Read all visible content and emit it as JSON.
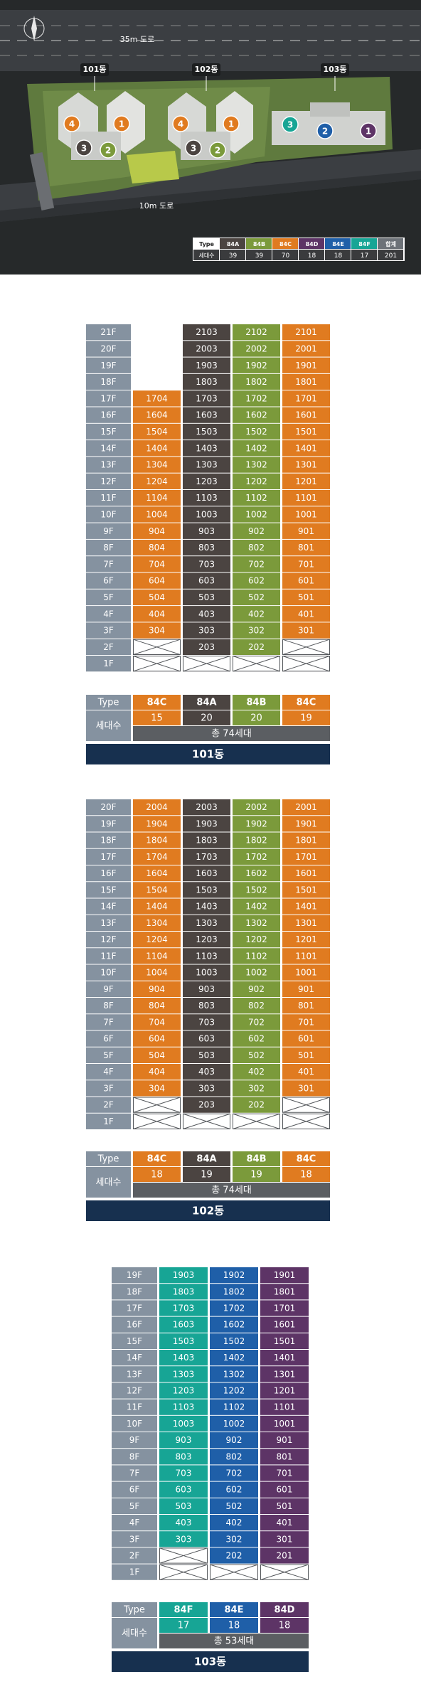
{
  "site_plan": {
    "roads": [
      "35m 도로",
      "10m 도로"
    ],
    "buildings": [
      {
        "label": "101동",
        "markers": [
          "4",
          "1",
          "3",
          "2"
        ]
      },
      {
        "label": "102동",
        "markers": [
          "4",
          "1",
          "3",
          "2"
        ]
      },
      {
        "label": "103동",
        "markers": [
          "3",
          "2",
          "1"
        ]
      }
    ],
    "type_table": {
      "header": [
        "Type",
        "84A",
        "84B",
        "84C",
        "84D",
        "84E",
        "84F",
        "합계"
      ],
      "counts_label": "세대수",
      "counts": [
        "39",
        "39",
        "70",
        "18",
        "18",
        "17",
        "201"
      ]
    }
  },
  "buildings": [
    {
      "floors": [
        "21F",
        "20F",
        "19F",
        "18F",
        "17F",
        "16F",
        "15F",
        "14F",
        "13F",
        "12F",
        "11F",
        "10F",
        "9F",
        "8F",
        "7F",
        "6F",
        "5F",
        "4F",
        "3F",
        "2F",
        "1F"
      ],
      "columns": [
        {
          "color": "#e07b20",
          "units": [
            null,
            null,
            null,
            null,
            "1704",
            "1604",
            "1504",
            "1404",
            "1304",
            "1204",
            "1104",
            "1004",
            "904",
            "804",
            "704",
            "604",
            "504",
            "404",
            "304",
            null,
            null
          ]
        },
        {
          "color": "#4b4441",
          "units": [
            "2103",
            "2003",
            "1903",
            "1803",
            "1703",
            "1603",
            "1503",
            "1403",
            "1303",
            "1203",
            "1103",
            "1003",
            "903",
            "803",
            "703",
            "603",
            "503",
            "403",
            "303",
            "203",
            null
          ]
        },
        {
          "color": "#7b9a3b",
          "units": [
            "2102",
            "2002",
            "1902",
            "1802",
            "1702",
            "1602",
            "1502",
            "1402",
            "1302",
            "1202",
            "1102",
            "1002",
            "902",
            "802",
            "702",
            "602",
            "502",
            "402",
            "302",
            "202",
            null
          ]
        },
        {
          "color": "#e07b20",
          "units": [
            "2101",
            "2001",
            "1901",
            "1801",
            "1701",
            "1601",
            "1501",
            "1401",
            "1301",
            "1201",
            "1101",
            "1001",
            "901",
            "801",
            "701",
            "601",
            "501",
            "401",
            "301",
            null,
            null
          ]
        }
      ],
      "summary": {
        "type_label": "Type",
        "types": [
          "84C",
          "84A",
          "84B",
          "84C"
        ],
        "count_label": "세대수",
        "counts": [
          "15",
          "20",
          "20",
          "19"
        ],
        "total": "총 74세대",
        "name": "101동"
      }
    },
    {
      "floors": [
        "20F",
        "19F",
        "18F",
        "17F",
        "16F",
        "15F",
        "14F",
        "13F",
        "12F",
        "11F",
        "10F",
        "9F",
        "8F",
        "7F",
        "6F",
        "5F",
        "4F",
        "3F",
        "2F",
        "1F"
      ],
      "columns": [
        {
          "color": "#e07b20",
          "units": [
            "2004",
            "1904",
            "1804",
            "1704",
            "1604",
            "1504",
            "1404",
            "1304",
            "1204",
            "1104",
            "1004",
            "904",
            "804",
            "704",
            "604",
            "504",
            "404",
            "304",
            null,
            null
          ]
        },
        {
          "color": "#4b4441",
          "units": [
            "2003",
            "1903",
            "1803",
            "1703",
            "1603",
            "1503",
            "1403",
            "1303",
            "1203",
            "1103",
            "1003",
            "903",
            "803",
            "703",
            "603",
            "503",
            "403",
            "303",
            "203",
            null
          ]
        },
        {
          "color": "#7b9a3b",
          "units": [
            "2002",
            "1902",
            "1802",
            "1702",
            "1602",
            "1502",
            "1402",
            "1302",
            "1202",
            "1102",
            "1002",
            "902",
            "802",
            "702",
            "602",
            "502",
            "402",
            "302",
            "202",
            null
          ]
        },
        {
          "color": "#e07b20",
          "units": [
            "2001",
            "1901",
            "1801",
            "1701",
            "1601",
            "1501",
            "1401",
            "1301",
            "1201",
            "1101",
            "1001",
            "901",
            "801",
            "701",
            "601",
            "501",
            "401",
            "301",
            null,
            null
          ]
        }
      ],
      "summary": {
        "type_label": "Type",
        "types": [
          "84C",
          "84A",
          "84B",
          "84C"
        ],
        "count_label": "세대수",
        "counts": [
          "18",
          "19",
          "19",
          "18"
        ],
        "total": "총 74세대",
        "name": "102동"
      }
    },
    {
      "floors": [
        "19F",
        "18F",
        "17F",
        "16F",
        "15F",
        "14F",
        "13F",
        "12F",
        "11F",
        "10F",
        "9F",
        "8F",
        "7F",
        "6F",
        "5F",
        "4F",
        "3F",
        "2F",
        "1F"
      ],
      "columns": [
        {
          "color": "#17a595",
          "units": [
            "1903",
            "1803",
            "1703",
            "1603",
            "1503",
            "1403",
            "1303",
            "1203",
            "1103",
            "1003",
            "903",
            "803",
            "703",
            "603",
            "503",
            "403",
            "303",
            null,
            null
          ]
        },
        {
          "color": "#1f5fa8",
          "units": [
            "1902",
            "1802",
            "1702",
            "1602",
            "1502",
            "1402",
            "1302",
            "1202",
            "1102",
            "1002",
            "902",
            "802",
            "702",
            "602",
            "502",
            "402",
            "302",
            "202",
            null
          ]
        },
        {
          "color": "#5d3466",
          "units": [
            "1901",
            "1801",
            "1701",
            "1601",
            "1501",
            "1401",
            "1301",
            "1201",
            "1101",
            "1001",
            "901",
            "801",
            "701",
            "601",
            "501",
            "401",
            "301",
            "201",
            null
          ]
        }
      ],
      "summary": {
        "type_label": "Type",
        "types": [
          "84F",
          "84E",
          "84D"
        ],
        "count_label": "세대수",
        "counts": [
          "17",
          "18",
          "18"
        ],
        "total": "총 53세대",
        "name": "103동"
      }
    }
  ]
}
